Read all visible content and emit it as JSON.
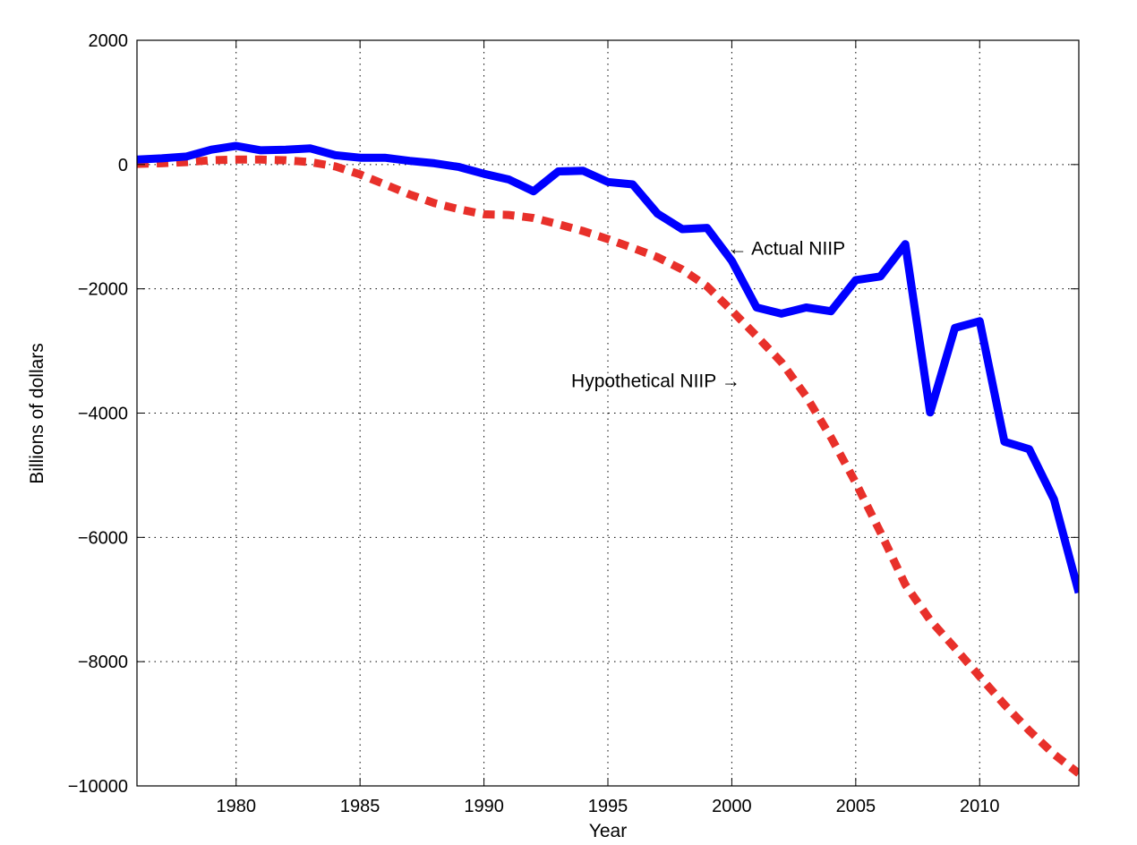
{
  "chart_data": {
    "type": "line",
    "xlabel": "Year",
    "ylabel": "Billions of dollars",
    "xlim": [
      1976,
      2014
    ],
    "ylim": [
      -10000,
      2000
    ],
    "xticks": [
      1980,
      1985,
      1990,
      1995,
      2000,
      2005,
      2010
    ],
    "yticks": [
      2000,
      0,
      -2000,
      -4000,
      -6000,
      -8000,
      -10000
    ],
    "ytick_labels": [
      "2000",
      "0",
      "−2000",
      "−4000",
      "−6000",
      "−8000",
      "−10000"
    ],
    "grid": true,
    "x": [
      1976,
      1977,
      1978,
      1979,
      1980,
      1981,
      1982,
      1983,
      1984,
      1985,
      1986,
      1987,
      1988,
      1989,
      1990,
      1991,
      1992,
      1993,
      1994,
      1995,
      1996,
      1997,
      1998,
      1999,
      2000,
      2001,
      2002,
      2003,
      2004,
      2005,
      2006,
      2007,
      2008,
      2009,
      2010,
      2011,
      2012,
      2013,
      2014
    ],
    "series": [
      {
        "name": "Actual NIIP",
        "color": "#0000ff",
        "style": "solid",
        "values": [
          80,
          100,
          130,
          240,
          300,
          230,
          240,
          260,
          150,
          110,
          110,
          60,
          20,
          -40,
          -150,
          -240,
          -430,
          -110,
          -100,
          -280,
          -320,
          -790,
          -1040,
          -1020,
          -1550,
          -2300,
          -2400,
          -2300,
          -2360,
          -1860,
          -1800,
          -1280,
          -3990,
          -2630,
          -2520,
          -4460,
          -4580,
          -5390,
          -6890
        ]
      },
      {
        "name": "Hypothetical NIIP",
        "color": "#e8302a",
        "style": "dashed",
        "values": [
          10,
          20,
          40,
          70,
          80,
          80,
          70,
          40,
          -30,
          -160,
          -320,
          -480,
          -620,
          -720,
          -800,
          -810,
          -860,
          -960,
          -1070,
          -1200,
          -1340,
          -1490,
          -1690,
          -1960,
          -2350,
          -2760,
          -3180,
          -3730,
          -4390,
          -5120,
          -5920,
          -6760,
          -7330,
          -7780,
          -8240,
          -8690,
          -9110,
          -9490,
          -9800
        ]
      }
    ],
    "annotations": [
      {
        "text": "← Actual NIIP",
        "x": 2000,
        "y": -1350
      },
      {
        "text": "Hypothetical NIIP →",
        "x": 1999,
        "y": -3480
      }
    ]
  }
}
